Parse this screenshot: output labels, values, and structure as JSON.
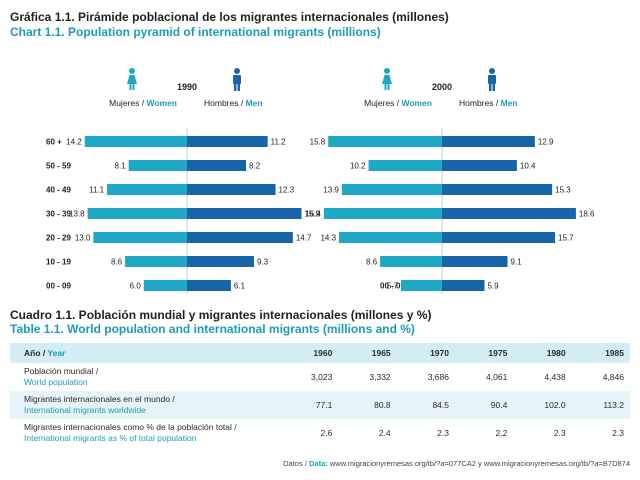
{
  "header": {
    "chart_title_es": "Gráfica 1.1. Pirámide poblacional de los migrantes internacionales (millones)",
    "chart_title_en": "Chart 1.1. Population pyramid of international migrants (millions)",
    "table_title_es": "Cuadro 1.1. Población mundial y migrantes internacionales (millones y %)",
    "table_title_en": "Table 1.1. World population and international migrants (millions and %)"
  },
  "chart_data": [
    {
      "type": "bar",
      "title": "1990",
      "women_label_es": "Mujeres /",
      "women_label_en": "Women",
      "men_label_es": "Hombres /",
      "men_label_en": "Men",
      "categories": [
        "60 +",
        "50 - 59",
        "40 - 49",
        "30 - 39",
        "20 - 29",
        "10 - 19",
        "00 - 09"
      ],
      "series": [
        {
          "name": "Mujeres / Women",
          "values": [
            14.2,
            8.1,
            11.1,
            13.8,
            13.0,
            8.6,
            6.0
          ],
          "color": "#1fa8c6"
        },
        {
          "name": "Hombres / Men",
          "values": [
            11.2,
            8.2,
            12.3,
            15.9,
            14.7,
            9.3,
            6.1
          ],
          "color": "#1565a8"
        }
      ],
      "value_labels_women": [
        "14.2",
        "8.1",
        "11.1",
        "13.8",
        "13.0",
        "8.6",
        "6.0"
      ],
      "value_labels_men": [
        "11.2",
        "8.2",
        "12.3",
        "15.9",
        "14.7",
        "9.3",
        "6.1"
      ],
      "xlim": [
        0,
        20
      ]
    },
    {
      "type": "bar",
      "title": "2000",
      "women_label_es": "Mujeres /",
      "women_label_en": "Women",
      "men_label_es": "Hombres /",
      "men_label_en": "Men",
      "categories": [
        "60 +",
        "50 - 59",
        "40 - 49",
        "30 - 39",
        "20 - 29",
        "10 - 19",
        "00 - 09"
      ],
      "series": [
        {
          "name": "Mujeres / Women",
          "values": [
            15.8,
            10.2,
            13.9,
            16.4,
            14.3,
            8.6,
            5.7
          ],
          "color": "#1fa8c6"
        },
        {
          "name": "Hombres / Men",
          "values": [
            12.9,
            10.4,
            15.3,
            18.6,
            15.7,
            9.1,
            5.9
          ],
          "color": "#1565a8"
        }
      ],
      "value_labels_women": [
        "15.8",
        "10.2",
        "13.9",
        "16.4",
        "14.3",
        "8.6",
        "5.7"
      ],
      "value_labels_men": [
        "12.9",
        "10.4",
        "15.3",
        "18.6",
        "15.7",
        "9.1",
        "5.9"
      ],
      "xlim": [
        0,
        20
      ]
    }
  ],
  "table": {
    "year_label_es": "Año /",
    "year_label_en": "Year",
    "years": [
      "1960",
      "1965",
      "1970",
      "1975",
      "1980",
      "1985"
    ],
    "rows": [
      {
        "label_es": "Población mundial /",
        "label_en": "World population",
        "values": [
          "3,023",
          "3,332",
          "3,686",
          "4,061",
          "4,438",
          "4,846"
        ]
      },
      {
        "label_es": "Migrantes internacionales en el mundo /",
        "label_en": "International migrants worldwide",
        "values": [
          "77.1",
          "80.8",
          "84.5",
          "90.4",
          "102.0",
          "113.2"
        ]
      },
      {
        "label_es": "Migrantes internacionales como % de la población total /",
        "label_en": "International migrants as % of total population",
        "values": [
          "2.6",
          "2.4",
          "2.3",
          "2.2",
          "2.3",
          "2.3"
        ]
      }
    ]
  },
  "source": {
    "prefix": "Datos /",
    "label": "Data:",
    "text": "www.migracionyremesas.org/tb/?a=077CA2 y www.migracionyremesas.org/tb/?a=B7D874"
  },
  "colors": {
    "women": "#1fa8c6",
    "men": "#1565a8",
    "accent": "#1a9dba"
  }
}
